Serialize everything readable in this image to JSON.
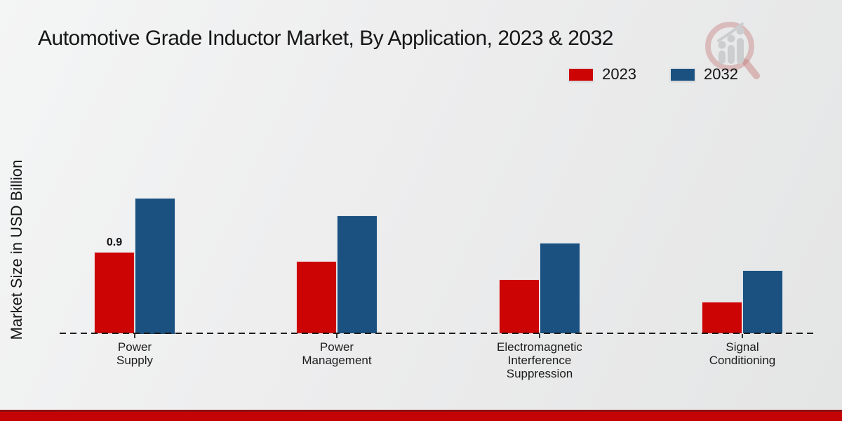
{
  "title": "Automotive Grade Inductor Market, By Application, 2023 & 2032",
  "watermark_icon": "magnifier-bar-chart-logo",
  "footer_color": "#c40404",
  "chart_data": {
    "type": "bar",
    "title": "Automotive Grade Inductor Market, By Application, 2023 & 2032",
    "xlabel": "",
    "ylabel": "Market Size in USD Billion",
    "categories": [
      "Power Supply",
      "Power Management",
      "Electromagnetic Interference Suppression",
      "Signal Conditioning"
    ],
    "series": [
      {
        "name": "2023",
        "color": "#cc0404",
        "values": [
          0.9,
          0.8,
          0.6,
          0.35
        ]
      },
      {
        "name": "2032",
        "color": "#1b5180",
        "values": [
          1.5,
          1.3,
          1.0,
          0.7
        ]
      }
    ],
    "annotation": {
      "series_index": 0,
      "category_index": 0,
      "text": "0.9"
    },
    "ylim": [
      0,
      1.6
    ],
    "grid": false,
    "y_axis_tick_labels_visible": false,
    "baseline_style": "dashed",
    "legend_position": "top-right"
  }
}
